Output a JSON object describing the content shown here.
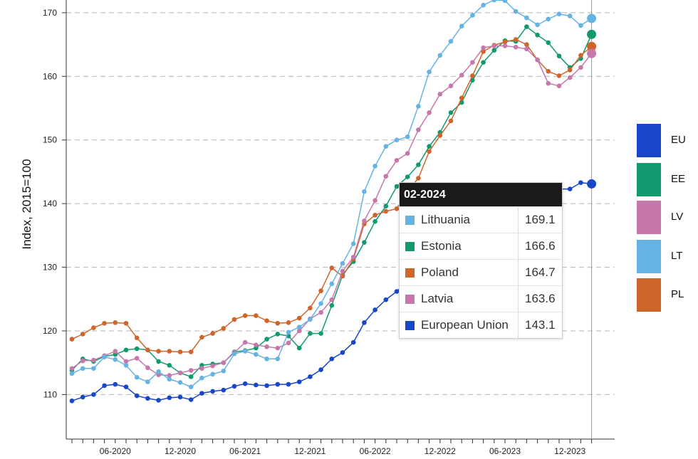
{
  "chart_data": {
    "type": "line",
    "ylabel": "Index, 2015=100",
    "ylim": [
      103,
      172
    ],
    "yticks": [
      110,
      120,
      130,
      140,
      150,
      160,
      170
    ],
    "xticks": [
      {
        "index": 4,
        "label": "06-2020"
      },
      {
        "index": 10,
        "label": "12-2020"
      },
      {
        "index": 16,
        "label": "06-2021"
      },
      {
        "index": 22,
        "label": "12-2021"
      },
      {
        "index": 28,
        "label": "06-2022"
      },
      {
        "index": 34,
        "label": "12-2022"
      },
      {
        "index": 40,
        "label": "06-2023"
      },
      {
        "index": 46,
        "label": "12-2023"
      }
    ],
    "x": [
      "02-2020",
      "03-2020",
      "04-2020",
      "05-2020",
      "06-2020",
      "07-2020",
      "08-2020",
      "09-2020",
      "10-2020",
      "11-2020",
      "12-2020",
      "01-2021",
      "02-2021",
      "03-2021",
      "04-2021",
      "05-2021",
      "06-2021",
      "07-2021",
      "08-2021",
      "09-2021",
      "10-2021",
      "11-2021",
      "12-2021",
      "01-2022",
      "02-2022",
      "03-2022",
      "04-2022",
      "05-2022",
      "06-2022",
      "07-2022",
      "08-2022",
      "09-2022",
      "10-2022",
      "11-2022",
      "12-2022",
      "01-2023",
      "02-2023",
      "03-2023",
      "04-2023",
      "05-2023",
      "06-2023",
      "07-2023",
      "08-2023",
      "09-2023",
      "10-2023",
      "11-2023",
      "12-2023",
      "01-2024",
      "02-2024"
    ],
    "series": [
      {
        "name": "European Union",
        "legend": "EU",
        "color": "#1746c8",
        "values": [
          109.0,
          109.6,
          110.0,
          111.4,
          111.6,
          111.2,
          109.8,
          109.4,
          109.1,
          109.5,
          109.6,
          109.2,
          110.2,
          110.5,
          110.7,
          111.3,
          111.7,
          111.5,
          111.4,
          111.6,
          111.6,
          112.0,
          112.8,
          113.9,
          115.6,
          116.6,
          118.2,
          121.3,
          123.3,
          124.9,
          126.2,
          127.8,
          129.4,
          130.9,
          132.4,
          133.8,
          135.0,
          136.2,
          137.3,
          138.0,
          138.8,
          139.6,
          140.2,
          140.8,
          141.5,
          142.3,
          142.3,
          143.3,
          143.1
        ]
      },
      {
        "name": "Estonia",
        "legend": "EE",
        "color": "#119a6f",
        "values": [
          113.8,
          115.6,
          115.2,
          116.0,
          116.3,
          117.0,
          117.2,
          117.0,
          115.2,
          114.6,
          113.4,
          112.8,
          114.6,
          114.8,
          115.0,
          116.7,
          116.9,
          117.3,
          118.7,
          119.5,
          119.2,
          117.3,
          119.6,
          119.6,
          124.0,
          128.8,
          130.9,
          133.9,
          137.2,
          139.6,
          142.7,
          144.2,
          146.1,
          149.0,
          151.2,
          154.3,
          155.9,
          159.4,
          162.2,
          164.1,
          165.6,
          165.5,
          167.8,
          166.5,
          165.3,
          163.2,
          161.4,
          162.8,
          166.6
        ]
      },
      {
        "name": "Poland",
        "legend": "PL",
        "color": "#d0652c",
        "values": [
          118.7,
          119.5,
          120.5,
          121.2,
          121.3,
          121.2,
          118.9,
          117.0,
          116.8,
          116.8,
          116.7,
          116.7,
          119.0,
          119.6,
          120.4,
          121.8,
          122.4,
          122.4,
          121.6,
          121.2,
          121.3,
          122.0,
          123.6,
          126.3,
          129.9,
          128.6,
          131.3,
          136.8,
          138.2,
          138.8,
          139.2,
          142.0,
          144.0,
          148.2,
          150.7,
          153.0,
          156.6,
          160.1,
          163.9,
          164.9,
          165.4,
          165.8,
          165.0,
          162.6,
          160.8,
          160.1,
          161.0,
          163.3,
          164.7
        ]
      },
      {
        "name": "Latvia",
        "legend": "LV",
        "color": "#c677ac",
        "values": [
          114.1,
          115.3,
          115.4,
          116.1,
          116.8,
          115.2,
          115.7,
          114.2,
          113.1,
          113.0,
          113.4,
          113.8,
          114.1,
          114.5,
          115.0,
          116.6,
          118.2,
          117.8,
          117.5,
          117.3,
          118.1,
          120.0,
          121.9,
          122.9,
          124.9,
          129.4,
          131.6,
          137.3,
          140.5,
          144.3,
          146.8,
          147.9,
          151.6,
          154.3,
          157.2,
          158.5,
          160.2,
          162.2,
          164.5,
          164.8,
          164.8,
          164.6,
          164.3,
          162.6,
          158.9,
          158.5,
          159.8,
          161.4,
          163.6
        ]
      },
      {
        "name": "Lithuania",
        "legend": "LT",
        "color": "#64b3e3",
        "values": [
          113.3,
          114.1,
          114.1,
          115.9,
          115.5,
          114.6,
          112.7,
          112.0,
          113.6,
          112.4,
          111.9,
          111.2,
          112.6,
          113.2,
          113.7,
          116.4,
          116.8,
          116.3,
          115.6,
          115.6,
          119.8,
          120.6,
          121.8,
          124.3,
          127.4,
          130.6,
          133.7,
          141.9,
          145.9,
          149.0,
          150.0,
          150.5,
          155.3,
          160.7,
          163.3,
          165.5,
          167.9,
          169.6,
          171.2,
          172.0,
          171.9,
          170.2,
          169.2,
          168.1,
          169.0,
          169.8,
          169.5,
          168.0,
          169.1
        ]
      }
    ]
  },
  "tooltip": {
    "title": "02-2024",
    "rows": [
      {
        "label": "Lithuania",
        "value": "169.1",
        "color": "#64b3e3"
      },
      {
        "label": "Estonia",
        "value": "166.6",
        "color": "#119a6f"
      },
      {
        "label": "Poland",
        "value": "164.7",
        "color": "#d0652c"
      },
      {
        "label": "Latvia",
        "value": "163.6",
        "color": "#c677ac"
      },
      {
        "label": "European Union",
        "value": "143.1",
        "color": "#1746c8"
      }
    ]
  }
}
